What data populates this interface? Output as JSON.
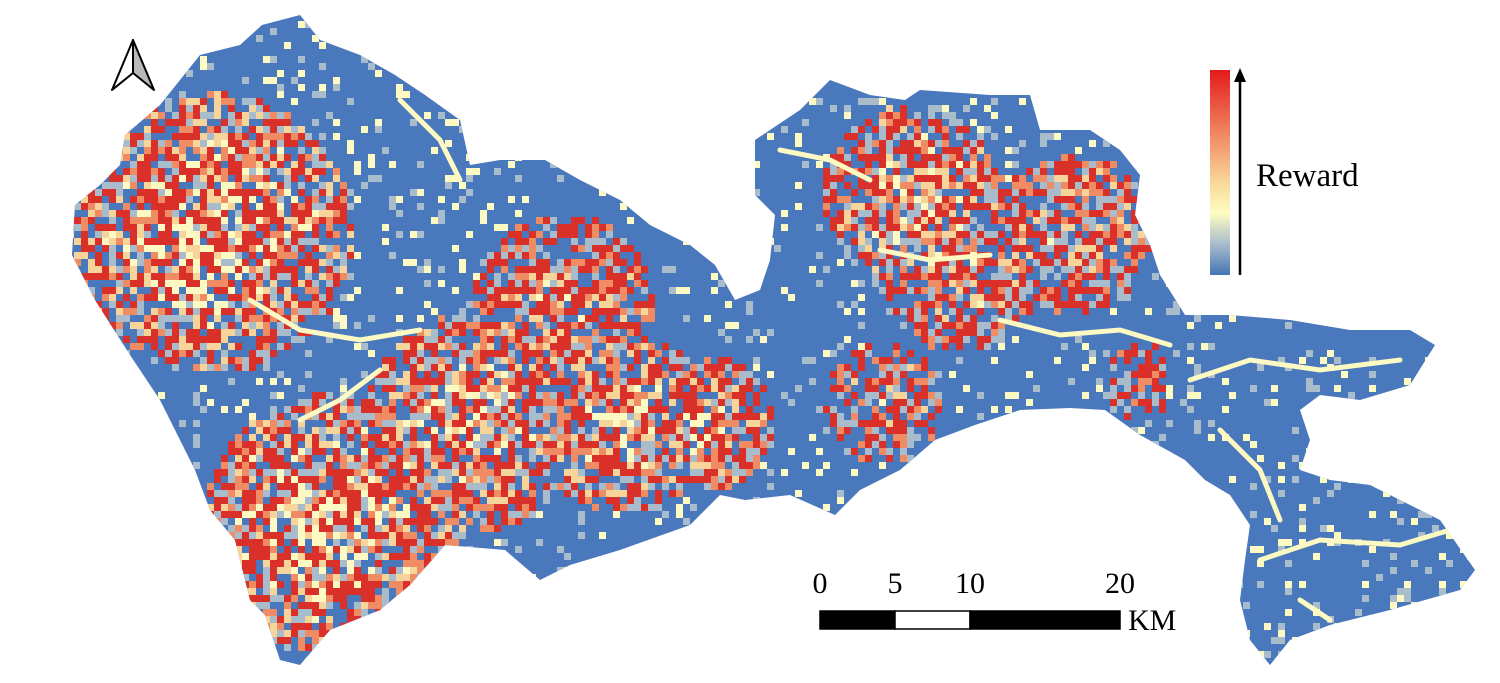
{
  "legend": {
    "label": "Reward",
    "colors": [
      "#e31a1c",
      "#f0835f",
      "#f9d99a",
      "#fdfcc3",
      "#a8bccc",
      "#4575b4"
    ]
  },
  "north_arrow": {
    "icon": "north-arrow-icon"
  },
  "scale_bar": {
    "ticks": [
      "0",
      "5",
      "10",
      "20"
    ],
    "unit": "KM"
  },
  "map": {
    "palette": {
      "water_blue": "#4a78bc",
      "light_gray_blue": "#a9bccc",
      "pale_yellow": "#fcf9c2",
      "sand": "#f6d49a",
      "salmon": "#ef8c63",
      "red": "#d9302a"
    }
  }
}
